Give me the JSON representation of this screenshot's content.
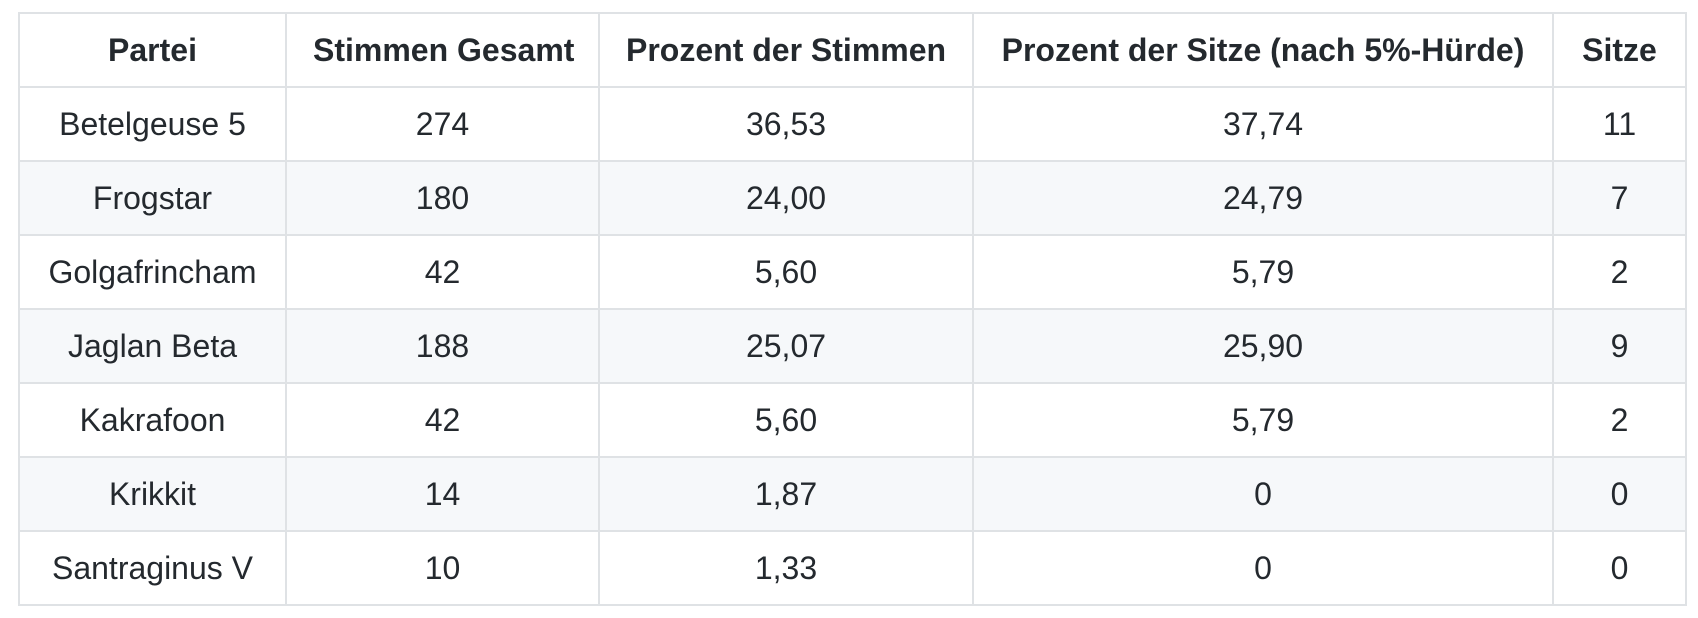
{
  "colors": {
    "text": "#24292e",
    "border": "#dfe2e5",
    "row_stripe": "#f6f8fa",
    "background": "#ffffff"
  },
  "table": {
    "columns": [
      "Partei",
      "Stimmen Gesamt",
      "Prozent der Stimmen",
      "Prozent der Sitze (nach 5%-Hürde)",
      "Sitze"
    ],
    "rows": [
      [
        "Betelgeuse 5",
        "274",
        "36,53",
        "37,74",
        "11"
      ],
      [
        "Frogstar",
        "180",
        "24,00",
        "24,79",
        "7"
      ],
      [
        "Golgafrincham",
        "42",
        "5,60",
        "5,79",
        "2"
      ],
      [
        "Jaglan Beta",
        "188",
        "25,07",
        "25,90",
        "9"
      ],
      [
        "Kakrafoon",
        "42",
        "5,60",
        "5,79",
        "2"
      ],
      [
        "Krikkit",
        "14",
        "1,87",
        "0",
        "0"
      ],
      [
        "Santraginus V",
        "10",
        "1,33",
        "0",
        "0"
      ]
    ]
  }
}
